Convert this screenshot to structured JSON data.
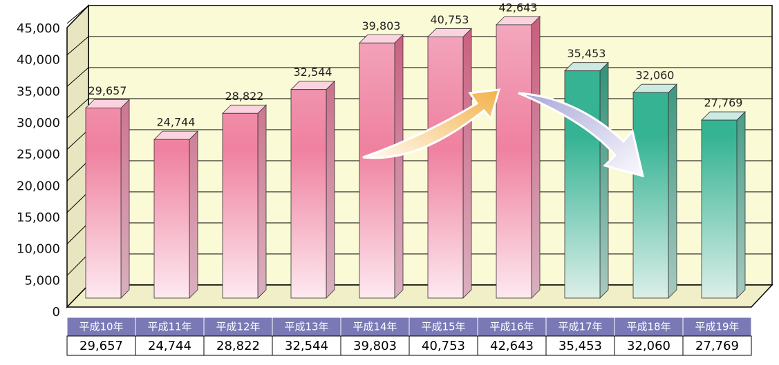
{
  "chart_data": {
    "type": "bar3d",
    "categories": [
      "平成10年",
      "平成11年",
      "平成12年",
      "平成13年",
      "平成14年",
      "平成15年",
      "平成16年",
      "平成17年",
      "平成18年",
      "平成19年"
    ],
    "values": [
      29657,
      24744,
      28822,
      32544,
      39803,
      40753,
      42643,
      35453,
      32060,
      27769
    ],
    "value_labels": [
      "29,657",
      "24,744",
      "28,822",
      "32,544",
      "39,803",
      "40,753",
      "42,643",
      "35,453",
      "32,060",
      "27,769"
    ],
    "colors": [
      "#ef819f",
      "#ef819f",
      "#ef819f",
      "#ef819f",
      "#ef819f",
      "#ef819f",
      "#ef819f",
      "#35b393",
      "#35b393",
      "#35b393"
    ],
    "ylim": [
      0,
      45000
    ],
    "yticks": [
      0,
      {
        "value": 5000,
        "label": "5,000"
      },
      {
        "value": 10000,
        "label": "10,000"
      },
      {
        "value": 15000,
        "label": "15,000"
      },
      {
        "value": 20000,
        "label": "20,000"
      },
      {
        "value": 25000,
        "label": "25,000"
      },
      {
        "value": 30000,
        "label": "30,000"
      },
      {
        "value": 35000,
        "label": "35,000"
      },
      {
        "value": 40000,
        "label": "40,000"
      },
      {
        "value": 45000,
        "label": "45,000"
      }
    ],
    "grid": true
  }
}
